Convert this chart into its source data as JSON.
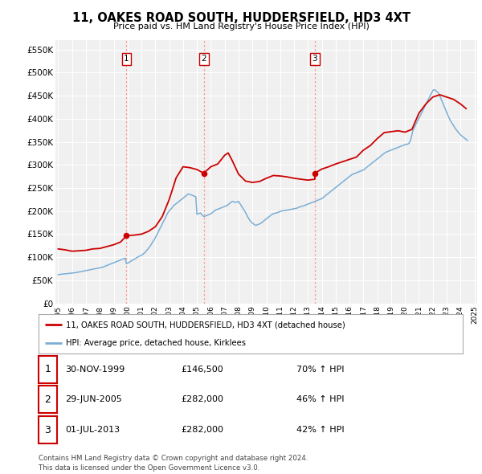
{
  "title": "11, OAKES ROAD SOUTH, HUDDERSFIELD, HD3 4XT",
  "subtitle": "Price paid vs. HM Land Registry's House Price Index (HPI)",
  "ylim": [
    0,
    570000
  ],
  "yticks": [
    0,
    50000,
    100000,
    150000,
    200000,
    250000,
    300000,
    350000,
    400000,
    450000,
    500000,
    550000
  ],
  "ytick_labels": [
    "£0",
    "£50K",
    "£100K",
    "£150K",
    "£200K",
    "£250K",
    "£300K",
    "£350K",
    "£400K",
    "£450K",
    "£500K",
    "£550K"
  ],
  "background_color": "#ffffff",
  "plot_bg_color": "#f0f0f0",
  "grid_color": "#ffffff",
  "hpi_color": "#7aaed6",
  "price_color": "#cc0000",
  "sale_vline_color": "#ff9999",
  "legend_label_price": "11, OAKES ROAD SOUTH, HUDDERSFIELD, HD3 4XT (detached house)",
  "legend_label_hpi": "HPI: Average price, detached house, Kirklees",
  "footnote": "Contains HM Land Registry data © Crown copyright and database right 2024.\nThis data is licensed under the Open Government Licence v3.0.",
  "sales": [
    {
      "num": 1,
      "date_num": 1999.92,
      "price": 146500,
      "label": "30-NOV-1999",
      "price_str": "£146,500",
      "pct": "70% ↑ HPI"
    },
    {
      "num": 2,
      "date_num": 2005.49,
      "price": 282000,
      "label": "29-JUN-2005",
      "price_str": "£282,000",
      "pct": "46% ↑ HPI"
    },
    {
      "num": 3,
      "date_num": 2013.5,
      "price": 282000,
      "label": "01-JUL-2013",
      "price_str": "£282,000",
      "pct": "42% ↑ HPI"
    }
  ],
  "hpi_x": [
    1995.0,
    1995.08,
    1995.17,
    1995.25,
    1995.33,
    1995.42,
    1995.5,
    1995.58,
    1995.67,
    1995.75,
    1995.83,
    1995.92,
    1996.0,
    1996.08,
    1996.17,
    1996.25,
    1996.33,
    1996.42,
    1996.5,
    1996.58,
    1996.67,
    1996.75,
    1996.83,
    1996.92,
    1997.0,
    1997.08,
    1997.17,
    1997.25,
    1997.33,
    1997.42,
    1997.5,
    1997.58,
    1997.67,
    1997.75,
    1997.83,
    1997.92,
    1998.0,
    1998.08,
    1998.17,
    1998.25,
    1998.33,
    1998.42,
    1998.5,
    1998.58,
    1998.67,
    1998.75,
    1998.83,
    1998.92,
    1999.0,
    1999.08,
    1999.17,
    1999.25,
    1999.33,
    1999.42,
    1999.5,
    1999.58,
    1999.67,
    1999.75,
    1999.83,
    1999.92,
    2000.0,
    2000.08,
    2000.17,
    2000.25,
    2000.33,
    2000.42,
    2000.5,
    2000.58,
    2000.67,
    2000.75,
    2000.83,
    2000.92,
    2001.0,
    2001.08,
    2001.17,
    2001.25,
    2001.33,
    2001.42,
    2001.5,
    2001.58,
    2001.67,
    2001.75,
    2001.83,
    2001.92,
    2002.0,
    2002.08,
    2002.17,
    2002.25,
    2002.33,
    2002.42,
    2002.5,
    2002.58,
    2002.67,
    2002.75,
    2002.83,
    2002.92,
    2003.0,
    2003.08,
    2003.17,
    2003.25,
    2003.33,
    2003.42,
    2003.5,
    2003.58,
    2003.67,
    2003.75,
    2003.83,
    2003.92,
    2004.0,
    2004.08,
    2004.17,
    2004.25,
    2004.33,
    2004.42,
    2004.5,
    2004.58,
    2004.67,
    2004.75,
    2004.83,
    2004.92,
    2005.0,
    2005.08,
    2005.17,
    2005.25,
    2005.33,
    2005.42,
    2005.5,
    2005.58,
    2005.67,
    2005.75,
    2005.83,
    2005.92,
    2006.0,
    2006.08,
    2006.17,
    2006.25,
    2006.33,
    2006.42,
    2006.5,
    2006.58,
    2006.67,
    2006.75,
    2006.83,
    2006.92,
    2007.0,
    2007.08,
    2007.17,
    2007.25,
    2007.33,
    2007.42,
    2007.5,
    2007.58,
    2007.67,
    2007.75,
    2007.83,
    2007.92,
    2008.0,
    2008.08,
    2008.17,
    2008.25,
    2008.33,
    2008.42,
    2008.5,
    2008.58,
    2008.67,
    2008.75,
    2008.83,
    2008.92,
    2009.0,
    2009.08,
    2009.17,
    2009.25,
    2009.33,
    2009.42,
    2009.5,
    2009.58,
    2009.67,
    2009.75,
    2009.83,
    2009.92,
    2010.0,
    2010.08,
    2010.17,
    2010.25,
    2010.33,
    2010.42,
    2010.5,
    2010.58,
    2010.67,
    2010.75,
    2010.83,
    2010.92,
    2011.0,
    2011.08,
    2011.17,
    2011.25,
    2011.33,
    2011.42,
    2011.5,
    2011.58,
    2011.67,
    2011.75,
    2011.83,
    2011.92,
    2012.0,
    2012.08,
    2012.17,
    2012.25,
    2012.33,
    2012.42,
    2012.5,
    2012.58,
    2012.67,
    2012.75,
    2012.83,
    2012.92,
    2013.0,
    2013.08,
    2013.17,
    2013.25,
    2013.33,
    2013.42,
    2013.5,
    2013.58,
    2013.67,
    2013.75,
    2013.83,
    2013.92,
    2014.0,
    2014.08,
    2014.17,
    2014.25,
    2014.33,
    2014.42,
    2014.5,
    2014.58,
    2014.67,
    2014.75,
    2014.83,
    2014.92,
    2015.0,
    2015.08,
    2015.17,
    2015.25,
    2015.33,
    2015.42,
    2015.5,
    2015.58,
    2015.67,
    2015.75,
    2015.83,
    2015.92,
    2016.0,
    2016.08,
    2016.17,
    2016.25,
    2016.33,
    2016.42,
    2016.5,
    2016.58,
    2016.67,
    2016.75,
    2016.83,
    2016.92,
    2017.0,
    2017.08,
    2017.17,
    2017.25,
    2017.33,
    2017.42,
    2017.5,
    2017.58,
    2017.67,
    2017.75,
    2017.83,
    2017.92,
    2018.0,
    2018.08,
    2018.17,
    2018.25,
    2018.33,
    2018.42,
    2018.5,
    2018.58,
    2018.67,
    2018.75,
    2018.83,
    2018.92,
    2019.0,
    2019.08,
    2019.17,
    2019.25,
    2019.33,
    2019.42,
    2019.5,
    2019.58,
    2019.67,
    2019.75,
    2019.83,
    2019.92,
    2020.0,
    2020.08,
    2020.17,
    2020.25,
    2020.33,
    2020.42,
    2020.5,
    2020.58,
    2020.67,
    2020.75,
    2020.83,
    2020.92,
    2021.0,
    2021.08,
    2021.17,
    2021.25,
    2021.33,
    2021.42,
    2021.5,
    2021.58,
    2021.67,
    2021.75,
    2021.83,
    2021.92,
    2022.0,
    2022.08,
    2022.17,
    2022.25,
    2022.33,
    2022.42,
    2022.5,
    2022.58,
    2022.67,
    2022.75,
    2022.83,
    2022.92,
    2023.0,
    2023.08,
    2023.17,
    2023.25,
    2023.33,
    2023.42,
    2023.5,
    2023.58,
    2023.67,
    2023.75,
    2023.83,
    2023.92,
    2024.0,
    2024.08,
    2024.17,
    2024.25,
    2024.33,
    2024.42,
    2024.5
  ],
  "hpi_y": [
    62000,
    62500,
    63000,
    63200,
    63500,
    63800,
    64000,
    64200,
    64500,
    64800,
    65000,
    65200,
    65500,
    65800,
    66000,
    66500,
    67000,
    67500,
    68000,
    68500,
    69000,
    69500,
    70000,
    70500,
    71000,
    71500,
    72000,
    72500,
    73000,
    73500,
    74000,
    74500,
    75000,
    75500,
    76000,
    76500,
    77000,
    77500,
    78000,
    79000,
    80000,
    81000,
    82000,
    83000,
    84000,
    85000,
    86000,
    87000,
    88000,
    89000,
    90000,
    91000,
    92000,
    93000,
    94000,
    95000,
    96000,
    97000,
    98000,
    86200,
    87000,
    88500,
    90000,
    91500,
    93000,
    94500,
    96000,
    97500,
    99000,
    100500,
    102000,
    103000,
    104000,
    106000,
    108000,
    110000,
    113000,
    116000,
    119000,
    122000,
    126000,
    130000,
    134000,
    138000,
    142000,
    147000,
    152000,
    157000,
    162000,
    167000,
    172000,
    177000,
    182000,
    187000,
    192000,
    197000,
    200000,
    203000,
    206000,
    209000,
    212000,
    214000,
    216000,
    218000,
    220000,
    222000,
    224000,
    226000,
    228000,
    230000,
    232000,
    234000,
    236000,
    237000,
    236000,
    235000,
    234000,
    233000,
    232000,
    231000,
    193000,
    194000,
    195000,
    196000,
    193000,
    190000,
    188000,
    189000,
    190000,
    191000,
    192000,
    193000,
    194000,
    196000,
    198000,
    200000,
    202000,
    203000,
    204000,
    205000,
    206000,
    207000,
    208000,
    209000,
    210000,
    211000,
    212000,
    214000,
    216000,
    218000,
    220000,
    221000,
    220000,
    219000,
    219000,
    220000,
    221000,
    217000,
    213000,
    209000,
    205000,
    201000,
    197000,
    192000,
    187000,
    183000,
    179000,
    176000,
    174000,
    172000,
    170000,
    169000,
    170000,
    171000,
    172000,
    173000,
    175000,
    177000,
    179000,
    181000,
    183000,
    185000,
    187000,
    189000,
    191000,
    193000,
    194000,
    195000,
    195500,
    196000,
    197000,
    198000,
    199000,
    200000,
    200500,
    201000,
    201000,
    201500,
    202000,
    202500,
    203000,
    203500,
    204000,
    204500,
    205000,
    205500,
    206000,
    207000,
    208000,
    209000,
    210000,
    210500,
    211000,
    212000,
    213000,
    214000,
    215000,
    216000,
    217000,
    218000,
    219000,
    220000,
    221000,
    222000,
    223000,
    224000,
    225000,
    226000,
    227000,
    229000,
    231000,
    233000,
    235000,
    237000,
    239000,
    241000,
    243000,
    245000,
    247000,
    249000,
    251000,
    253000,
    255000,
    257000,
    259000,
    261000,
    263000,
    265000,
    267000,
    269000,
    271000,
    273000,
    275000,
    277000,
    279000,
    280000,
    281000,
    282000,
    283000,
    284000,
    285000,
    286000,
    287000,
    288000,
    289000,
    291000,
    293000,
    295000,
    297000,
    299000,
    301000,
    303000,
    305000,
    307000,
    309000,
    311000,
    313000,
    315000,
    317000,
    319000,
    321000,
    323000,
    325000,
    327000,
    328000,
    329000,
    330000,
    331000,
    332000,
    333000,
    334000,
    335000,
    336000,
    337000,
    338000,
    339000,
    340000,
    341000,
    342000,
    343000,
    344000,
    344500,
    345000,
    346000,
    349000,
    356000,
    366000,
    376000,
    381000,
    386000,
    391000,
    396000,
    401000,
    406000,
    411000,
    416000,
    421000,
    426000,
    431000,
    436000,
    441000,
    446000,
    451000,
    456000,
    461000,
    463000,
    462000,
    460000,
    458000,
    455000,
    450000,
    444000,
    438000,
    432000,
    426000,
    420000,
    414000,
    408000,
    402000,
    397000,
    393000,
    389000,
    385000,
    381000,
    377000,
    374000,
    371000,
    368000,
    365000,
    363000,
    361000,
    359000,
    357000,
    355000,
    353000
  ],
  "price_x": [
    1995.0,
    1995.5,
    1996.0,
    1996.5,
    1997.0,
    1997.5,
    1998.0,
    1998.5,
    1999.0,
    1999.5,
    1999.92,
    2000.1,
    2000.5,
    2001.0,
    2001.5,
    2002.0,
    2002.5,
    2003.0,
    2003.5,
    2004.0,
    2004.5,
    2005.0,
    2005.49,
    2005.6,
    2006.0,
    2006.5,
    2007.0,
    2007.25,
    2007.5,
    2007.75,
    2008.0,
    2008.5,
    2009.0,
    2009.5,
    2010.0,
    2010.5,
    2011.0,
    2011.5,
    2012.0,
    2012.5,
    2013.0,
    2013.5,
    2013.5,
    2014.0,
    2014.5,
    2015.0,
    2015.5,
    2016.0,
    2016.5,
    2017.0,
    2017.5,
    2018.0,
    2018.5,
    2019.0,
    2019.5,
    2020.0,
    2020.5,
    2021.0,
    2021.5,
    2022.0,
    2022.5,
    2023.0,
    2023.5,
    2024.0,
    2024.4
  ],
  "price_y": [
    118000,
    116000,
    113000,
    114000,
    115000,
    118000,
    119000,
    123000,
    127000,
    133000,
    146500,
    147000,
    148000,
    150000,
    156000,
    166000,
    188000,
    225000,
    272000,
    296000,
    294000,
    290000,
    282000,
    285000,
    296000,
    302000,
    321000,
    326000,
    312000,
    296000,
    280000,
    265000,
    262000,
    264000,
    271000,
    277000,
    276000,
    274000,
    271000,
    269000,
    267000,
    269000,
    282000,
    291000,
    296000,
    302000,
    307000,
    312000,
    317000,
    332000,
    342000,
    357000,
    370000,
    372000,
    374000,
    371000,
    377000,
    412000,
    432000,
    447000,
    452000,
    447000,
    442000,
    432000,
    422000
  ],
  "xticks": [
    1995,
    1996,
    1997,
    1998,
    1999,
    2000,
    2001,
    2002,
    2003,
    2004,
    2005,
    2006,
    2007,
    2008,
    2009,
    2010,
    2011,
    2012,
    2013,
    2014,
    2015,
    2016,
    2017,
    2018,
    2019,
    2020,
    2021,
    2022,
    2023,
    2024,
    2025
  ],
  "xlim": [
    1994.8,
    2025.2
  ]
}
